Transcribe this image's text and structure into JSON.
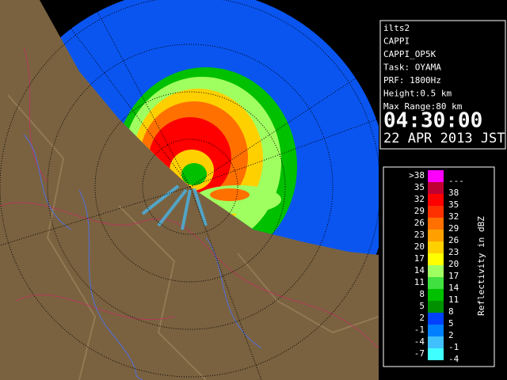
{
  "info": {
    "lines": [
      "ilts2",
      "CAPPI",
      "CAPPI_OP5K",
      "Task: OYAMA",
      "PRF: 1800Hz",
      "Height:0.5 km",
      "Max Range:80 km"
    ],
    "time": "04:30:00",
    "date": "22 APR 2013 JST"
  },
  "legend": {
    "title": "Reflectivity in dBZ",
    "rows": [
      {
        "low": ">38",
        "high": "---",
        "color": "#ff00ff"
      },
      {
        "low": "35",
        "high": "38",
        "color": "#c00030"
      },
      {
        "low": "32",
        "high": "35",
        "color": "#ff0000"
      },
      {
        "low": "29",
        "high": "32",
        "color": "#ff3000"
      },
      {
        "low": "26",
        "high": "29",
        "color": "#ff7000"
      },
      {
        "low": "23",
        "high": "26",
        "color": "#ffa000"
      },
      {
        "low": "20",
        "high": "23",
        "color": "#ffd000"
      },
      {
        "low": "17",
        "high": "20",
        "color": "#ffff00"
      },
      {
        "low": "14",
        "high": "17",
        "color": "#a0ff60"
      },
      {
        "low": "11",
        "high": "14",
        "color": "#40e040"
      },
      {
        "low": "8",
        "high": "11",
        "color": "#00c000"
      },
      {
        "low": "5",
        "high": "8",
        "color": "#009000"
      },
      {
        "low": "2",
        "high": "5",
        "color": "#0040ff"
      },
      {
        "low": "-1",
        "high": "2",
        "color": "#0080ff"
      },
      {
        "low": "-4",
        "high": "-1",
        "color": "#40c0ff"
      },
      {
        "low": "-7",
        "high": "-4",
        "color": "#40ffff"
      }
    ]
  }
}
